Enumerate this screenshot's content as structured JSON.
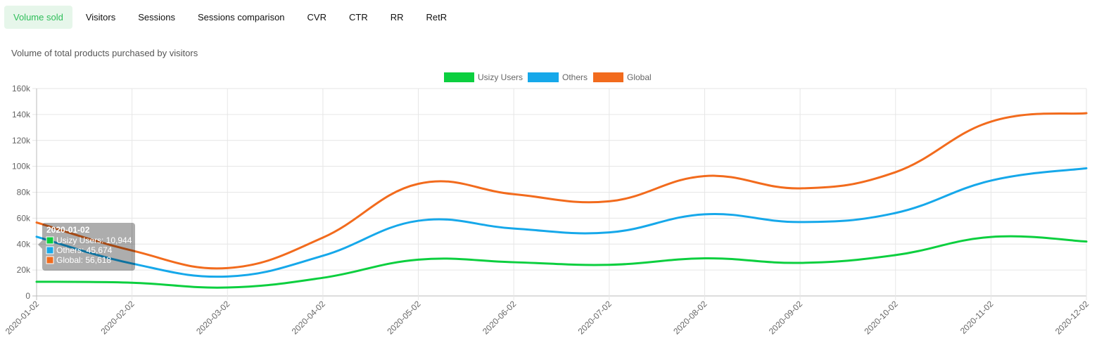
{
  "tabs": [
    {
      "label": "Volume sold",
      "active": true
    },
    {
      "label": "Visitors",
      "active": false
    },
    {
      "label": "Sessions",
      "active": false
    },
    {
      "label": "Sessions comparison",
      "active": false
    },
    {
      "label": "CVR",
      "active": false
    },
    {
      "label": "CTR",
      "active": false
    },
    {
      "label": "RR",
      "active": false
    },
    {
      "label": "RetR",
      "active": false
    }
  ],
  "subtitle": "Volume of total products purchased by visitors",
  "chart_data": {
    "type": "line",
    "x": [
      "2020-01-02",
      "2020-02-02",
      "2020-03-02",
      "2020-04-02",
      "2020-05-02",
      "2020-06-02",
      "2020-07-02",
      "2020-08-02",
      "2020-09-02",
      "2020-10-02",
      "2020-11-02",
      "2020-12-02"
    ],
    "series": [
      {
        "name": "Usizy Users",
        "color": "#0ccf3f",
        "values": [
          10944,
          10200,
          6500,
          14000,
          28000,
          26000,
          24000,
          29000,
          25500,
          31500,
          45500,
          42000
        ]
      },
      {
        "name": "Others",
        "color": "#16a8ea",
        "values": [
          45674,
          25000,
          15000,
          31000,
          58000,
          52000,
          49000,
          63000,
          57000,
          64000,
          89000,
          98500
        ]
      },
      {
        "name": "Global",
        "color": "#f26b1d",
        "values": [
          56618,
          35000,
          21500,
          45000,
          86500,
          78500,
          73000,
          92500,
          83000,
          95500,
          134500,
          141000
        ]
      }
    ],
    "ylim": [
      0,
      160000
    ],
    "yticks": [
      "0",
      "20k",
      "40k",
      "60k",
      "80k",
      "100k",
      "120k",
      "140k",
      "160k"
    ],
    "grid": true,
    "legend": "top-center",
    "tooltip": {
      "title": "2020-01-02",
      "lines": [
        "Usizy Users: 10,944",
        "Others: 45,674",
        "Global: 56,618"
      ]
    }
  }
}
